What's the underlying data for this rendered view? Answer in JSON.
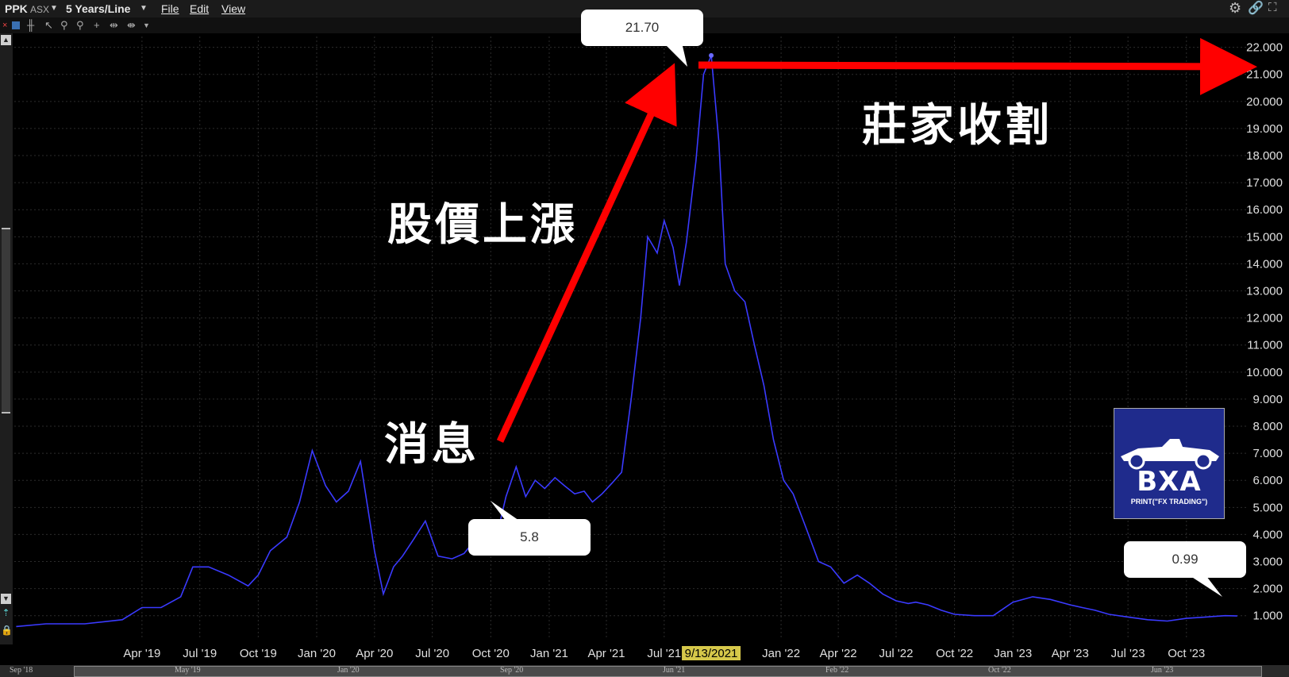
{
  "window": {
    "symbol": "PPK",
    "exchange": "ASX",
    "period": "5 Years/Line",
    "menu": [
      "File",
      "Edit",
      "View"
    ]
  },
  "annotations": {
    "peak_label": "21.70",
    "news_price_label": "5.8",
    "latest_price_label": "0.99",
    "text_news": "消息",
    "text_rise": "股價上漲",
    "text_harvest": "莊家收割"
  },
  "highlight_date": "9/13/2021",
  "logo": {
    "name": "BXA",
    "tagline": "PRINT(\"FX TRADING\")"
  },
  "navigator_labels": [
    "Sep '18",
    "May '19",
    "Jan '20",
    "Sep '20",
    "Jun '21",
    "Feb '22",
    "Oct '22",
    "Jun '23"
  ],
  "colors": {
    "line": "#3a3aff",
    "arrow": "#ff0000",
    "background": "#000000",
    "grid": "#2c2c2c",
    "highlight": "#d6c84a"
  },
  "chart_data": {
    "type": "line",
    "title": "",
    "xlabel": "",
    "ylabel": "",
    "ylim": [
      0.2,
      22.4
    ],
    "yticks": [
      "1.000",
      "2.000",
      "3.000",
      "4.000",
      "5.000",
      "6.000",
      "7.000",
      "8.000",
      "9.000",
      "10.000",
      "11.000",
      "12.000",
      "13.000",
      "14.000",
      "15.000",
      "16.000",
      "17.000",
      "18.000",
      "19.000",
      "20.000",
      "21.000",
      "22.000"
    ],
    "xticks": [
      "Apr '19",
      "Jul '19",
      "Oct '19",
      "Jan '20",
      "Apr '20",
      "Jul '20",
      "Oct '20",
      "Jan '21",
      "Apr '21",
      "Jul '21",
      "9/13/2021",
      "Jan '22",
      "Apr '22",
      "Jul '22",
      "Oct '22",
      "Jan '23",
      "Apr '23",
      "Jul '23",
      "Oct '23"
    ],
    "grid": true,
    "series": [
      {
        "x": [
          "2018-09-15",
          "2018-11-01",
          "2019-01-01",
          "2019-03-01",
          "2019-04-01",
          "2019-05-01",
          "2019-06-01",
          "2019-06-20",
          "2019-07-15",
          "2019-08-15",
          "2019-09-15",
          "2019-10-01",
          "2019-10-20",
          "2019-11-15",
          "2019-12-05",
          "2019-12-25",
          "2020-01-15",
          "2020-02-01",
          "2020-02-20",
          "2020-03-10",
          "2020-04-01",
          "2020-04-15",
          "2020-05-01",
          "2020-05-15",
          "2020-06-01",
          "2020-06-20",
          "2020-07-10",
          "2020-08-01",
          "2020-08-20",
          "2020-09-10",
          "2020-09-25",
          "2020-10-10",
          "2020-10-25",
          "2020-11-10",
          "2020-11-25",
          "2020-12-10",
          "2020-12-25",
          "2021-01-10",
          "2021-01-25",
          "2021-02-10",
          "2021-02-25",
          "2021-03-10",
          "2021-03-25",
          "2021-04-10",
          "2021-04-25",
          "2021-05-10",
          "2021-05-25",
          "2021-06-05",
          "2021-06-20",
          "2021-07-01",
          "2021-07-15",
          "2021-07-25",
          "2021-08-05",
          "2021-08-20",
          "2021-09-01",
          "2021-09-13",
          "2021-09-25",
          "2021-10-05",
          "2021-10-20",
          "2021-11-05",
          "2021-11-20",
          "2021-12-05",
          "2021-12-20",
          "2022-01-05",
          "2022-01-20",
          "2022-02-10",
          "2022-03-01",
          "2022-03-20",
          "2022-04-10",
          "2022-05-01",
          "2022-05-20",
          "2022-06-10",
          "2022-07-01",
          "2022-07-20",
          "2022-08-01",
          "2022-08-20",
          "2022-09-10",
          "2022-10-01",
          "2022-11-01",
          "2022-12-01",
          "2023-01-01",
          "2023-02-01",
          "2023-03-01",
          "2023-04-01",
          "2023-04-20",
          "2023-05-10",
          "2023-06-01",
          "2023-07-01",
          "2023-08-01",
          "2023-09-01",
          "2023-10-01",
          "2023-11-01",
          "2023-12-01",
          "2023-12-20"
        ],
        "y": [
          0.6,
          0.7,
          0.7,
          0.85,
          1.3,
          1.3,
          1.7,
          2.8,
          2.8,
          2.5,
          2.1,
          2.5,
          3.4,
          3.9,
          5.2,
          7.1,
          5.8,
          5.2,
          5.6,
          6.7,
          3.4,
          1.8,
          2.8,
          3.2,
          3.8,
          4.5,
          3.2,
          3.1,
          3.3,
          3.9,
          4.1,
          3.9,
          5.4,
          6.5,
          5.4,
          6.0,
          5.7,
          6.1,
          5.8,
          5.5,
          5.6,
          5.2,
          5.5,
          5.9,
          6.3,
          9.0,
          12.0,
          15.0,
          14.4,
          15.6,
          14.6,
          13.2,
          14.8,
          17.8,
          21.0,
          21.7,
          18.5,
          14.0,
          13.0,
          12.6,
          11.0,
          9.5,
          7.5,
          6.0,
          5.5,
          4.2,
          3.0,
          2.8,
          2.2,
          2.5,
          2.2,
          1.8,
          1.55,
          1.45,
          1.5,
          1.4,
          1.2,
          1.05,
          1.0,
          1.0,
          1.5,
          1.7,
          1.6,
          1.4,
          1.3,
          1.2,
          1.05,
          0.95,
          0.85,
          0.8,
          0.9,
          0.95,
          1.0,
          0.99
        ]
      }
    ]
  }
}
